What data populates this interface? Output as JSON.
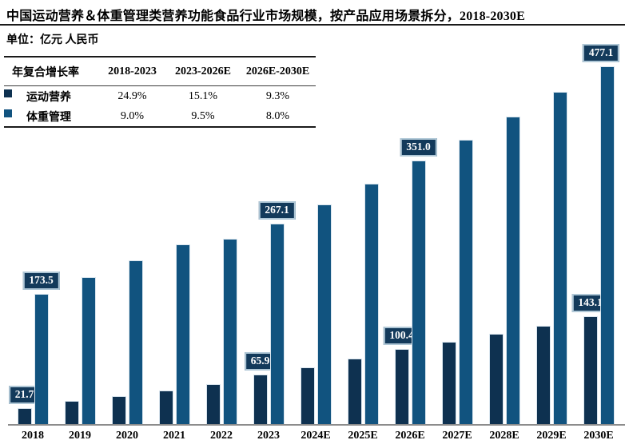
{
  "page": {
    "title": "中国运动营养＆体重管理类营养功能食品行业市场规模，按产品应用场景拆分，2018-2030E",
    "unit_label": "单位：亿元 人民币"
  },
  "colors": {
    "sports_nutrition_bar": "#0E3150",
    "weight_management_bar": "#11537F",
    "value_label_fill": "#133A5B",
    "value_label_border": "#AFC7D6",
    "axis_line": "#8C8C8C",
    "table_rule": "#1a1a1a"
  },
  "cagr_table": {
    "header": [
      "年复合增长率",
      "2018-2023",
      "2023-2026E",
      "2026E-2030E"
    ],
    "rows": [
      {
        "label": "运动营养",
        "values": [
          "24.9%",
          "15.1%",
          "9.3%"
        ]
      },
      {
        "label": "体重管理",
        "values": [
          "9.0%",
          "9.5%",
          "8.0%"
        ]
      }
    ]
  },
  "chart_data": {
    "type": "bar",
    "title": "中国运动营养＆体重管理类营养功能食品行业市场规模，按产品应用场景拆分，2018-2030E",
    "ylabel": "亿元 人民币",
    "xlabel": "",
    "ylim": [
      0,
      500
    ],
    "grid": false,
    "legend_position": "top-left-table",
    "categories": [
      "2018",
      "2019",
      "2020",
      "2021",
      "2022",
      "2023",
      "2024E",
      "2025E",
      "2026E",
      "2027E",
      "2028E",
      "2029E",
      "2030E"
    ],
    "series": [
      {
        "name": "运动营养",
        "color": "#0E3150",
        "values": [
          21.7,
          31.0,
          37.5,
          44.5,
          53.3,
          65.9,
          75.9,
          87.3,
          100.4,
          109.7,
          119.9,
          131.1,
          143.1
        ]
      },
      {
        "name": "体重管理",
        "color": "#11537F",
        "values": [
          173.5,
          195.5,
          217.9,
          239.8,
          247.2,
          267.1,
          292.4,
          320.2,
          351.0,
          379.1,
          409.4,
          442.2,
          477.1
        ]
      }
    ],
    "labeled_categories": [
      "2018",
      "2023",
      "2026E",
      "2030E"
    ],
    "shown_value_labels": [
      "21.7",
      "173.5",
      "65.9",
      "267.1",
      "100.4",
      "351.0",
      "143.1",
      "477.1"
    ]
  }
}
